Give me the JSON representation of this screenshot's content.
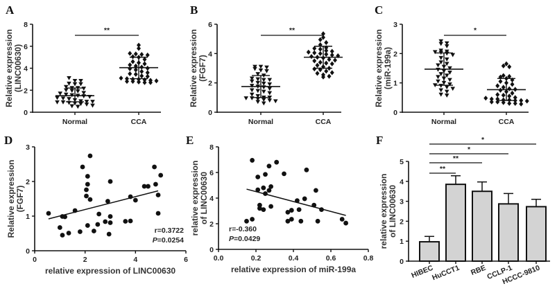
{
  "chart_data": [
    {
      "panel": "A",
      "type": "scatter",
      "ylabel": [
        "Relative expression",
        "(LINC00630)"
      ],
      "ylim": [
        0,
        8
      ],
      "yticks": [
        0,
        2,
        4,
        6,
        8
      ],
      "categories": [
        "Normal",
        "CCA"
      ],
      "significance": "**",
      "groups": [
        {
          "name": "Normal",
          "marker": "triangle-down",
          "mean": 1.5,
          "sd_upper": 2.2,
          "sd_lower": 0.95,
          "values": [
            3.1,
            2.85,
            2.85,
            2.6,
            2.55,
            2.55,
            2.3,
            2.2,
            2.2,
            2.15,
            2.0,
            1.95,
            1.9,
            1.75,
            1.7,
            1.6,
            1.55,
            1.5,
            1.45,
            1.4,
            1.3,
            1.25,
            1.2,
            1.1,
            1.0,
            0.95,
            0.95,
            0.9,
            0.9,
            0.85,
            0.8,
            0.75,
            0.7,
            0.6,
            0.55,
            0.5
          ]
        },
        {
          "name": "CCA",
          "marker": "diamond",
          "mean": 4.05,
          "sd_upper": 5.0,
          "sd_lower": 3.05,
          "values": [
            6.1,
            5.8,
            5.35,
            5.3,
            5.25,
            5.2,
            5.05,
            5.0,
            4.8,
            4.6,
            4.5,
            4.4,
            4.3,
            4.2,
            4.1,
            4.0,
            3.95,
            3.85,
            3.7,
            3.6,
            3.5,
            3.45,
            3.3,
            3.25,
            3.1,
            3.05,
            3.0,
            3.0,
            2.95,
            2.9,
            2.85,
            2.8,
            2.8,
            2.75,
            2.7,
            2.7
          ]
        }
      ]
    },
    {
      "panel": "B",
      "type": "scatter",
      "ylabel": [
        "Relative expression",
        "(FGF7)"
      ],
      "ylim": [
        0,
        6
      ],
      "yticks": [
        0,
        2,
        4,
        6
      ],
      "categories": [
        "Normal",
        "CCA"
      ],
      "significance": "**",
      "groups": [
        {
          "name": "Normal",
          "marker": "triangle-down",
          "mean": 1.75,
          "sd_upper": 2.5,
          "sd_lower": 1.0,
          "values": [
            3.1,
            3.1,
            3.05,
            2.95,
            2.85,
            2.8,
            2.6,
            2.5,
            2.3,
            2.25,
            2.2,
            2.2,
            2.1,
            2.0,
            1.95,
            1.9,
            1.8,
            1.75,
            1.7,
            1.6,
            1.5,
            1.45,
            1.4,
            1.3,
            1.2,
            1.1,
            1.0,
            1.0,
            0.95,
            0.95,
            0.9,
            0.85,
            0.8,
            0.75,
            0.7,
            0.6
          ]
        },
        {
          "name": "CCA",
          "marker": "diamond",
          "mean": 3.75,
          "sd_upper": 4.5,
          "sd_lower": 3.0,
          "values": [
            5.35,
            5.1,
            4.95,
            4.75,
            4.6,
            4.4,
            4.35,
            4.3,
            4.2,
            4.15,
            4.1,
            4.05,
            4.0,
            3.95,
            3.9,
            3.85,
            3.8,
            3.75,
            3.7,
            3.6,
            3.55,
            3.5,
            3.4,
            3.35,
            3.3,
            3.2,
            3.1,
            3.0,
            2.95,
            2.9,
            2.8,
            2.7,
            2.65,
            2.55,
            2.45,
            2.4
          ]
        }
      ]
    },
    {
      "panel": "C",
      "type": "scatter",
      "ylabel": [
        "Relative expression",
        "(miR-199a)"
      ],
      "ylim": [
        0,
        3
      ],
      "yticks": [
        0,
        1,
        2,
        3
      ],
      "categories": [
        "Normal",
        "CCA"
      ],
      "significance": "*",
      "groups": [
        {
          "name": "Normal",
          "marker": "triangle-down",
          "mean": 1.47,
          "sd_upper": 2.02,
          "sd_lower": 0.92,
          "values": [
            2.42,
            2.35,
            2.33,
            2.25,
            2.1,
            2.07,
            2.05,
            2.03,
            2.0,
            1.95,
            1.85,
            1.8,
            1.7,
            1.65,
            1.6,
            1.55,
            1.5,
            1.45,
            1.4,
            1.35,
            1.3,
            1.25,
            1.2,
            1.15,
            1.1,
            1.05,
            1.0,
            0.95,
            0.92,
            0.9,
            0.85,
            0.8,
            0.75,
            0.7,
            0.6,
            0.57
          ]
        },
        {
          "name": "CCA",
          "marker": "diamond",
          "mean": 0.77,
          "sd_upper": 1.15,
          "sd_lower": 0.4,
          "values": [
            1.65,
            1.58,
            1.55,
            1.25,
            1.22,
            1.2,
            1.15,
            1.1,
            1.05,
            1.0,
            0.95,
            0.9,
            0.85,
            0.8,
            0.78,
            0.75,
            0.7,
            0.65,
            0.6,
            0.58,
            0.55,
            0.5,
            0.48,
            0.45,
            0.45,
            0.42,
            0.42,
            0.4,
            0.4,
            0.38,
            0.35,
            0.35,
            0.33,
            0.3,
            0.3,
            0.28
          ]
        }
      ]
    },
    {
      "panel": "D",
      "type": "scatter",
      "xlabel": "relative expression of LINC00630",
      "ylabel": [
        "Relative expression",
        "(FGF7)"
      ],
      "xlim": [
        0,
        6
      ],
      "xticks": [
        0,
        2,
        4,
        6
      ],
      "ylim": [
        0,
        3
      ],
      "yticks": [
        0,
        1,
        2,
        3
      ],
      "stats": {
        "r": "r=0.3722",
        "p_label": "P",
        "p": "=0.0254"
      },
      "fit": [
        [
          0.55,
          0.92
        ],
        [
          4.9,
          1.73
        ]
      ],
      "points": [
        [
          0.55,
          1.08
        ],
        [
          1.0,
          0.67
        ],
        [
          1.1,
          0.99
        ],
        [
          1.1,
          0.45
        ],
        [
          1.2,
          0.98
        ],
        [
          1.35,
          0.51
        ],
        [
          1.6,
          1.16
        ],
        [
          1.8,
          0.55
        ],
        [
          1.9,
          2.42
        ],
        [
          2.05,
          1.58
        ],
        [
          2.05,
          1.76
        ],
        [
          2.1,
          1.92
        ],
        [
          2.1,
          2.15
        ],
        [
          2.1,
          0.73
        ],
        [
          2.2,
          1.48
        ],
        [
          2.2,
          2.74
        ],
        [
          2.35,
          0.57
        ],
        [
          2.5,
          0.76
        ],
        [
          2.55,
          1.06
        ],
        [
          2.8,
          0.84
        ],
        [
          2.9,
          1.43
        ],
        [
          2.95,
          0.48
        ],
        [
          3.0,
          2.0
        ],
        [
          3.0,
          0.99
        ],
        [
          3.0,
          0.81
        ],
        [
          3.6,
          0.85
        ],
        [
          3.8,
          0.86
        ],
        [
          3.8,
          1.56
        ],
        [
          4.0,
          1.46
        ],
        [
          4.35,
          1.86
        ],
        [
          4.5,
          1.86
        ],
        [
          4.75,
          2.42
        ],
        [
          4.8,
          1.92
        ],
        [
          4.9,
          1.08
        ],
        [
          4.9,
          1.61
        ],
        [
          5.0,
          2.18
        ]
      ]
    },
    {
      "panel": "E",
      "type": "scatter",
      "xlabel": "relative expression of miR-199a",
      "ylabel": [
        "relative expression",
        "of LINC00630"
      ],
      "xlim": [
        0,
        0.8
      ],
      "xticks": [
        "0.0",
        "0.2",
        "0.4",
        "0.6",
        "0.8"
      ],
      "ylim": [
        0,
        8
      ],
      "yticks": [
        0,
        2,
        4,
        6,
        8
      ],
      "stats": {
        "r": "r=-0.360",
        "p_label": "P",
        "p": "=0.0429"
      },
      "fit": [
        [
          0.15,
          4.7
        ],
        [
          0.68,
          2.65
        ]
      ],
      "points": [
        [
          0.15,
          2.2
        ],
        [
          0.18,
          2.35
        ],
        [
          0.18,
          6.95
        ],
        [
          0.21,
          5.65
        ],
        [
          0.21,
          4.65
        ],
        [
          0.22,
          3.45
        ],
        [
          0.22,
          3.2
        ],
        [
          0.24,
          3.1
        ],
        [
          0.24,
          4.8
        ],
        [
          0.25,
          5.85
        ],
        [
          0.25,
          4.35
        ],
        [
          0.27,
          6.5
        ],
        [
          0.27,
          4.6
        ],
        [
          0.28,
          4.9
        ],
        [
          0.28,
          3.35
        ],
        [
          0.31,
          6.8
        ],
        [
          0.35,
          5.9
        ],
        [
          0.37,
          2.9
        ],
        [
          0.37,
          2.2
        ],
        [
          0.39,
          3.05
        ],
        [
          0.39,
          2.35
        ],
        [
          0.42,
          3.8
        ],
        [
          0.43,
          3.1
        ],
        [
          0.44,
          2.2
        ],
        [
          0.46,
          3.95
        ],
        [
          0.47,
          6.2
        ],
        [
          0.51,
          3.45
        ],
        [
          0.52,
          4.6
        ],
        [
          0.53,
          2.2
        ],
        [
          0.55,
          3.1
        ],
        [
          0.66,
          2.35
        ],
        [
          0.68,
          2.05
        ]
      ]
    },
    {
      "panel": "F",
      "type": "bar",
      "ylabel": [
        "relative expression",
        "of LINC00630"
      ],
      "ylim": [
        0,
        5
      ],
      "yticks": [
        0,
        1,
        2,
        3,
        4,
        5
      ],
      "bar_color": "#d3d3d3",
      "categories": [
        "HIBEC",
        "HuCCT1",
        "RBE",
        "CCLP-1",
        "HCCC-9810"
      ],
      "values": [
        0.97,
        3.85,
        3.5,
        2.87,
        2.73
      ],
      "errors": [
        0.27,
        0.43,
        0.47,
        0.52,
        0.37
      ],
      "comparisons": [
        {
          "from": "HIBEC",
          "to": "HuCCT1",
          "label": "**"
        },
        {
          "from": "HIBEC",
          "to": "RBE",
          "label": "**"
        },
        {
          "from": "HIBEC",
          "to": "CCLP-1",
          "label": "*"
        },
        {
          "from": "HIBEC",
          "to": "HCCC-9810",
          "label": "*"
        }
      ]
    }
  ]
}
